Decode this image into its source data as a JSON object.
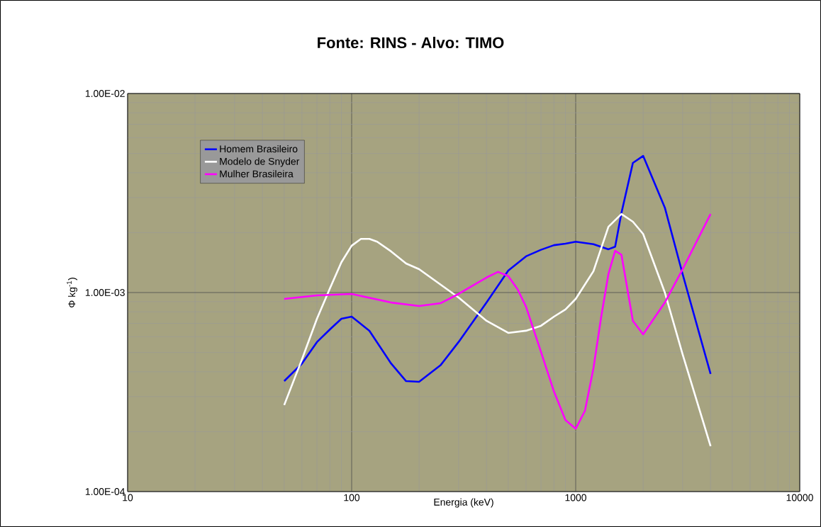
{
  "chart_data": {
    "type": "line",
    "title": "Fonte: RINS - Alvo: TIMO",
    "xlabel": "Energia (keV)",
    "ylabel": "Φ kg$^{-1}$)",
    "log": "xy",
    "grid": true,
    "legend": "top left",
    "xlim": [
      10,
      10000
    ],
    "xticks": [
      10,
      100,
      1000,
      10000
    ],
    "ylim": [
      0.0001,
      0.01
    ],
    "yticks": [
      {
        "value": 0.0001,
        "label": "1.00E-04"
      },
      {
        "value": 0.001,
        "label": "1.00E-03"
      },
      {
        "value": 0.01,
        "label": "1.00E-02"
      }
    ],
    "series": [
      {
        "name": "Homem Brasileiro",
        "color": "#0000ff",
        "x": [
          50,
          60,
          70,
          80,
          90,
          100,
          120,
          150,
          175,
          200,
          250,
          300,
          400,
          500,
          600,
          700,
          800,
          900,
          1000,
          1200,
          1400,
          1500,
          1600,
          1800,
          2000,
          2500,
          3000,
          4000
        ],
        "values": [
          0.000359,
          0.00044,
          0.000564,
          0.000653,
          0.000739,
          0.000757,
          0.000643,
          0.00044,
          0.000359,
          0.000356,
          0.000433,
          0.000564,
          0.000891,
          0.00129,
          0.00152,
          0.00164,
          0.00173,
          0.00176,
          0.0018,
          0.00175,
          0.00165,
          0.0017,
          0.00251,
          0.00448,
          0.00486,
          0.00267,
          0.00124,
          0.00039
        ]
      },
      {
        "name": "Modelo de Snyder",
        "color": "#ffffff",
        "x": [
          50,
          60,
          70,
          80,
          90,
          100,
          110,
          120,
          130,
          150,
          175,
          200,
          300,
          400,
          500,
          600,
          700,
          800,
          900,
          1000,
          1200,
          1400,
          1600,
          1800,
          2000,
          2500,
          3000,
          4000
        ],
        "values": [
          0.000272,
          0.000462,
          0.000739,
          0.00105,
          0.00142,
          0.00172,
          0.00186,
          0.00186,
          0.0018,
          0.00161,
          0.0014,
          0.00131,
          0.000944,
          0.000721,
          0.000627,
          0.000643,
          0.000681,
          0.000757,
          0.000822,
          0.000929,
          0.00128,
          0.00214,
          0.00248,
          0.00227,
          0.00197,
          0.001,
          0.00049,
          0.000169
        ]
      },
      {
        "name": "Mulher Brasileira",
        "color": "#ff00ff",
        "x": [
          50,
          70,
          100,
          150,
          200,
          250,
          300,
          400,
          450,
          500,
          550,
          600,
          700,
          800,
          900,
          1000,
          1100,
          1200,
          1300,
          1400,
          1500,
          1600,
          1800,
          2000,
          2500,
          3000,
          4000
        ],
        "values": [
          0.000929,
          0.000968,
          0.000984,
          0.000891,
          0.000856,
          0.000885,
          0.000984,
          0.00119,
          0.00127,
          0.00121,
          0.00104,
          0.00085,
          0.000503,
          0.000318,
          0.000229,
          0.000207,
          0.000255,
          0.000416,
          0.000757,
          0.00124,
          0.00162,
          0.00155,
          0.000721,
          0.000617,
          0.000891,
          0.00131,
          0.00248
        ]
      }
    ]
  }
}
